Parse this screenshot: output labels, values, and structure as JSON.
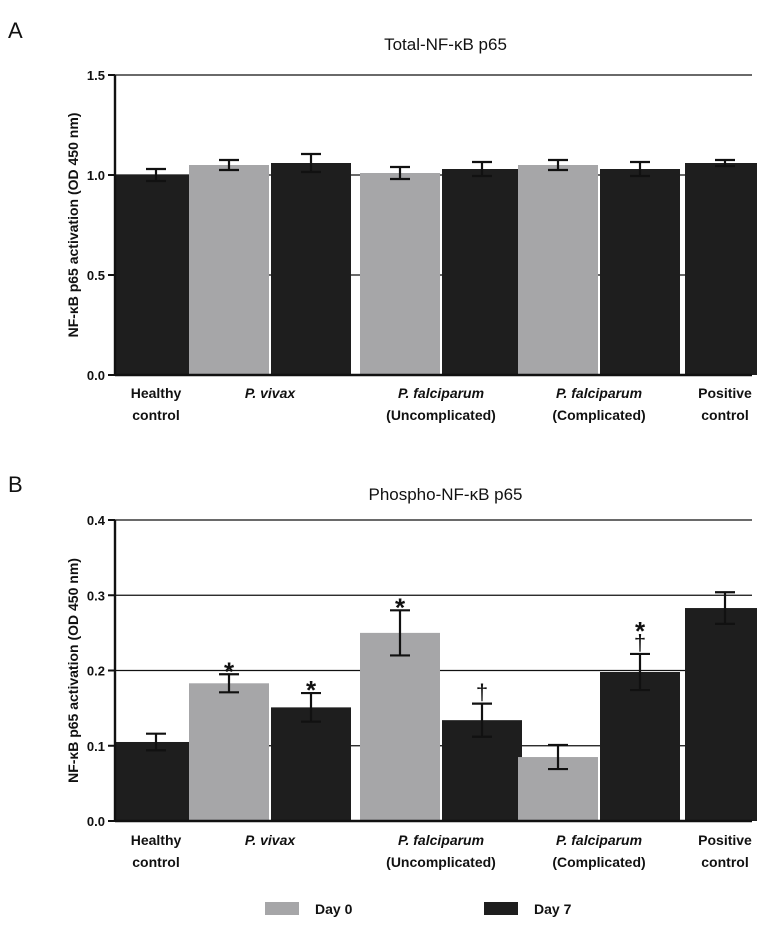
{
  "chart_data": [
    {
      "type": "bar",
      "panel": "A",
      "title": "Total-NF-κB p65",
      "ylabel": "NF-κB p65 activation (OD 450 nm)",
      "ylim": [
        0,
        1.5
      ],
      "yticks": [
        "0.0",
        "0.5",
        "1.0",
        "1.5"
      ],
      "grid": true,
      "categories": [
        {
          "line1": "Healthy",
          "line2": "control",
          "italic": false
        },
        {
          "line1": "P. vivax",
          "line2": "",
          "italic": true
        },
        {
          "line1": "P. falciparum",
          "line2": "(Uncomplicated)",
          "italic": true
        },
        {
          "line1": "P. falciparum",
          "line2": "(Complicated)",
          "italic": true
        },
        {
          "line1": "Positive",
          "line2": "control",
          "italic": false
        }
      ],
      "bars": [
        {
          "category": 0,
          "series": "day7",
          "value": 1.0,
          "err": 0.03,
          "marks": []
        },
        {
          "category": 1,
          "series": "day0",
          "value": 1.05,
          "err": 0.025,
          "marks": []
        },
        {
          "category": 1,
          "series": "day7",
          "value": 1.06,
          "err": 0.045,
          "marks": []
        },
        {
          "category": 2,
          "series": "day0",
          "value": 1.01,
          "err": 0.03,
          "marks": []
        },
        {
          "category": 2,
          "series": "day7",
          "value": 1.03,
          "err": 0.035,
          "marks": []
        },
        {
          "category": 3,
          "series": "day0",
          "value": 1.05,
          "err": 0.025,
          "marks": []
        },
        {
          "category": 3,
          "series": "day7",
          "value": 1.03,
          "err": 0.035,
          "marks": []
        },
        {
          "category": 4,
          "series": "day7",
          "value": 1.06,
          "err": 0.015,
          "marks": []
        }
      ]
    },
    {
      "type": "bar",
      "panel": "B",
      "title": "Phospho-NF-κB p65",
      "ylabel": "NF-κB p65 activation (OD 450 nm)",
      "ylim": [
        0,
        0.4
      ],
      "yticks": [
        "0.0",
        "0.1",
        "0.2",
        "0.3",
        "0.4"
      ],
      "grid": true,
      "categories": [
        {
          "line1": "Healthy",
          "line2": "control",
          "italic": false
        },
        {
          "line1": "P. vivax",
          "line2": "",
          "italic": true
        },
        {
          "line1": "P. falciparum",
          "line2": "(Uncomplicated)",
          "italic": true
        },
        {
          "line1": "P. falciparum",
          "line2": "(Complicated)",
          "italic": true
        },
        {
          "line1": "Positive",
          "line2": "control",
          "italic": false
        }
      ],
      "bars": [
        {
          "category": 0,
          "series": "day7",
          "value": 0.105,
          "err": 0.011,
          "marks": []
        },
        {
          "category": 1,
          "series": "day0",
          "value": 0.183,
          "err": 0.012,
          "marks": [
            "*"
          ]
        },
        {
          "category": 1,
          "series": "day7",
          "value": 0.151,
          "err": 0.019,
          "marks": [
            "*"
          ]
        },
        {
          "category": 2,
          "series": "day0",
          "value": 0.25,
          "err": 0.03,
          "marks": [
            "*"
          ]
        },
        {
          "category": 2,
          "series": "day7",
          "value": 0.134,
          "err": 0.022,
          "marks": [
            "†"
          ]
        },
        {
          "category": 3,
          "series": "day0",
          "value": 0.085,
          "err": 0.016,
          "marks": []
        },
        {
          "category": 3,
          "series": "day7",
          "value": 0.198,
          "err": 0.024,
          "marks": [
            "†",
            "*"
          ]
        },
        {
          "category": 4,
          "series": "day7",
          "value": 0.283,
          "err": 0.021,
          "marks": []
        }
      ]
    }
  ],
  "legend": {
    "placement": "bottom-center",
    "items": [
      {
        "key": "day0",
        "label": "Day 0",
        "color": "#a6a6a8"
      },
      {
        "key": "day7",
        "label": "Day 7",
        "color": "#1e1e1e"
      }
    ]
  }
}
